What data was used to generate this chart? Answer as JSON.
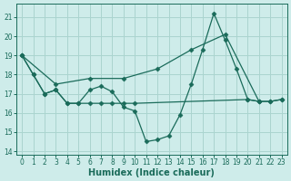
{
  "xlabel": "Humidex (Indice chaleur)",
  "background_color": "#ceecea",
  "grid_color": "#aad4cf",
  "line_color": "#1a6b5a",
  "xlim": [
    -0.5,
    23.5
  ],
  "ylim": [
    13.8,
    21.7
  ],
  "yticks": [
    14,
    15,
    16,
    17,
    18,
    19,
    20,
    21
  ],
  "xticks": [
    0,
    1,
    2,
    3,
    4,
    5,
    6,
    7,
    8,
    9,
    10,
    11,
    12,
    13,
    14,
    15,
    16,
    17,
    18,
    19,
    20,
    21,
    22,
    23
  ],
  "line1_x": [
    0,
    1,
    2,
    3,
    4,
    5,
    6,
    7,
    8,
    9,
    10,
    11,
    12,
    13,
    14,
    15,
    16,
    17,
    18,
    19,
    20,
    21,
    22,
    23
  ],
  "line1_y": [
    19.0,
    18.0,
    17.0,
    17.2,
    16.5,
    16.5,
    17.2,
    17.4,
    17.1,
    16.3,
    16.1,
    14.5,
    14.6,
    14.8,
    15.9,
    17.5,
    19.3,
    21.2,
    19.8,
    18.3,
    16.7,
    16.6,
    16.6,
    16.7
  ],
  "line2_x": [
    0,
    3,
    6,
    9,
    12,
    15,
    18,
    21
  ],
  "line2_y": [
    19.0,
    17.5,
    17.8,
    17.8,
    18.3,
    19.3,
    20.1,
    16.6
  ],
  "line3_x": [
    0,
    1,
    2,
    3,
    4,
    5,
    6,
    7,
    8,
    9,
    10,
    20,
    21,
    22,
    23
  ],
  "line3_y": [
    19.0,
    18.0,
    17.0,
    17.2,
    16.5,
    16.5,
    16.5,
    16.5,
    16.5,
    16.5,
    16.5,
    16.7,
    16.6,
    16.6,
    16.7
  ]
}
